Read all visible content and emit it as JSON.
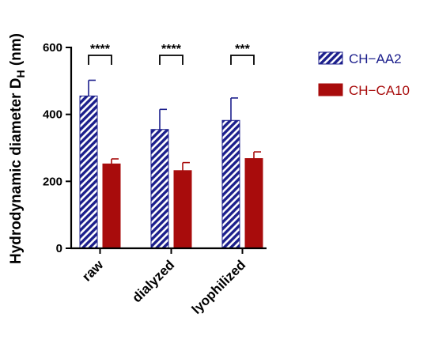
{
  "chart_data": {
    "type": "bar",
    "categories": [
      "raw",
      "dialyzed",
      "lyophilized"
    ],
    "series": [
      {
        "name": "CH−AA2",
        "values": [
          455,
          355,
          382
        ],
        "errors": [
          47,
          60,
          67
        ],
        "color": "#1c1f8c",
        "pattern": "hatch"
      },
      {
        "name": "CH−CA10",
        "values": [
          252,
          232,
          268
        ],
        "errors": [
          15,
          24,
          20
        ],
        "color": "#a80c0c",
        "pattern": "solid"
      }
    ],
    "ylabel_main": "Hydrodynamic diameter D",
    "ylabel_sub": "H",
    "ylabel_unit": " (nm)",
    "ylim": [
      0,
      600
    ],
    "yticks": [
      "0",
      "200",
      "400",
      "600"
    ],
    "significance": [
      "****",
      "****",
      "***"
    ],
    "legend_position": "right",
    "grid": false
  }
}
